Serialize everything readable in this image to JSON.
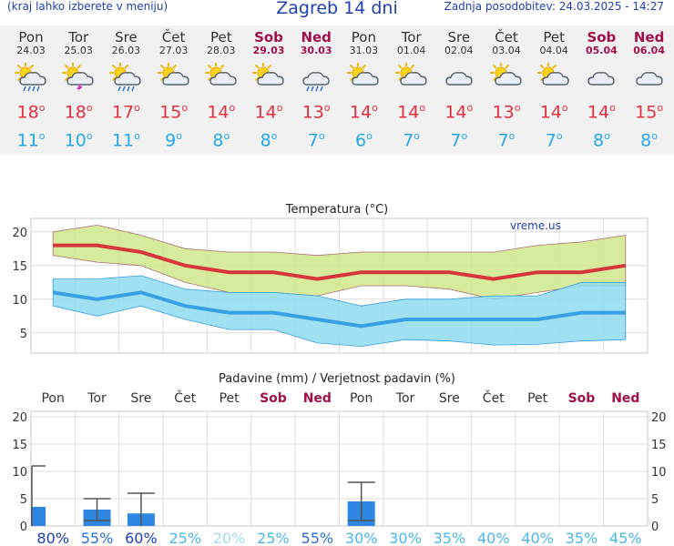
{
  "header": {
    "hint": "(kraj lahko izberete v meniju)",
    "title": "Zagreb 14 dni",
    "updated": "Zadnja posodobitev: 24.03.2025 - 14:27"
  },
  "days": [
    {
      "name": "Pon",
      "date": "24.03",
      "weekend": false,
      "icon": "sun-cloud-rain-icon",
      "tmax": "18",
      "tmin": "11"
    },
    {
      "name": "Tor",
      "date": "25.03",
      "weekend": false,
      "icon": "sun-cloud-thunder-icon",
      "tmax": "18",
      "tmin": "10"
    },
    {
      "name": "Sre",
      "date": "26.03",
      "weekend": false,
      "icon": "sun-cloud-rain-icon",
      "tmax": "17",
      "tmin": "11"
    },
    {
      "name": "Čet",
      "date": "27.03",
      "weekend": false,
      "icon": "sun-cloud-icon",
      "tmax": "15",
      "tmin": "9"
    },
    {
      "name": "Pet",
      "date": "28.03",
      "weekend": false,
      "icon": "sun-cloud-icon",
      "tmax": "14",
      "tmin": "8"
    },
    {
      "name": "Sob",
      "date": "29.03",
      "weekend": true,
      "icon": "sun-cloud-icon",
      "tmax": "14",
      "tmin": "8"
    },
    {
      "name": "Ned",
      "date": "30.03",
      "weekend": true,
      "icon": "cloud-rain-icon",
      "tmax": "13",
      "tmin": "7"
    },
    {
      "name": "Pon",
      "date": "31.03",
      "weekend": false,
      "icon": "sun-cloud-icon",
      "tmax": "14",
      "tmin": "6"
    },
    {
      "name": "Tor",
      "date": "01.04",
      "weekend": false,
      "icon": "sun-cloud-icon",
      "tmax": "14",
      "tmin": "7"
    },
    {
      "name": "Sre",
      "date": "02.04",
      "weekend": false,
      "icon": "cloud-icon",
      "tmax": "14",
      "tmin": "7"
    },
    {
      "name": "Čet",
      "date": "03.04",
      "weekend": false,
      "icon": "sun-cloud-icon",
      "tmax": "13",
      "tmin": "7"
    },
    {
      "name": "Pet",
      "date": "04.04",
      "weekend": false,
      "icon": "sun-cloud-icon",
      "tmax": "14",
      "tmin": "7"
    },
    {
      "name": "Sob",
      "date": "05.04",
      "weekend": true,
      "icon": "cloud-icon",
      "tmax": "14",
      "tmin": "8"
    },
    {
      "name": "Ned",
      "date": "06.04",
      "weekend": true,
      "icon": "cloud-icon",
      "tmax": "15",
      "tmin": "8"
    }
  ],
  "chart_data": [
    {
      "type": "line",
      "title": "Temperatura (°C)",
      "watermark": "vreme.us",
      "ylim": [
        2,
        22
      ],
      "yticks": [
        5,
        10,
        15,
        20
      ],
      "grid": true,
      "categories": [
        "24.03",
        "25.03",
        "26.03",
        "27.03",
        "28.03",
        "29.03",
        "30.03",
        "31.03",
        "01.04",
        "02.04",
        "03.04",
        "04.04",
        "05.04",
        "06.04"
      ],
      "series": [
        {
          "role": "max",
          "color": "#d8363c",
          "values": [
            18,
            18,
            17,
            15,
            14,
            14,
            13,
            14,
            14,
            14,
            13,
            14,
            14,
            15
          ]
        },
        {
          "role": "min",
          "color": "#3aa0e6",
          "values": [
            11,
            10,
            11,
            9,
            8,
            8,
            7,
            6,
            7,
            7,
            7,
            7,
            8,
            8
          ]
        }
      ],
      "bands": [
        {
          "role": "max-range",
          "color": "#cfe88a",
          "upper": [
            20,
            21,
            19.5,
            17.5,
            17,
            17,
            16.5,
            17,
            17,
            17,
            17,
            18,
            18.5,
            19.5
          ],
          "lower": [
            16.5,
            15.5,
            15,
            12.5,
            11,
            11,
            10.5,
            12,
            12,
            11.5,
            10,
            11,
            12,
            12
          ]
        },
        {
          "role": "min-range",
          "color": "#8edcf0",
          "upper": [
            13,
            13,
            13.5,
            11.5,
            11,
            11,
            10.5,
            9,
            10,
            10,
            10.5,
            10.5,
            12.5,
            12.5
          ],
          "lower": [
            9,
            7.5,
            9,
            7,
            5.5,
            5.5,
            3.5,
            3,
            4,
            3.8,
            3.2,
            3.3,
            3.8,
            4
          ]
        }
      ]
    },
    {
      "type": "bar",
      "title": "Padavine (mm) / Verjetnost padavin (%)",
      "ylim": [
        0,
        21
      ],
      "yticks": [
        0,
        5,
        10,
        15,
        20
      ],
      "categories": [
        "Pon",
        "Tor",
        "Sre",
        "Čet",
        "Pet",
        "Sob",
        "Ned",
        "Pon",
        "Tor",
        "Sre",
        "Čet",
        "Pet",
        "Sob",
        "Ned"
      ],
      "weekend": [
        false,
        false,
        false,
        false,
        false,
        true,
        true,
        false,
        false,
        false,
        false,
        false,
        true,
        true
      ],
      "values": [
        3.5,
        3,
        2.3,
        0,
        0,
        0,
        0,
        4.5,
        0,
        0,
        0,
        0,
        0,
        0
      ],
      "error_low": [
        0,
        1,
        0,
        0,
        0,
        0,
        0,
        1,
        0,
        0,
        0,
        0,
        0,
        0
      ],
      "error_high": [
        11,
        5,
        6,
        0,
        0,
        0,
        0,
        8,
        0,
        0,
        0,
        0,
        0,
        0
      ],
      "probability": [
        "80%",
        "55%",
        "60%",
        "25%",
        "20%",
        "25%",
        "55%",
        "30%",
        "30%",
        "35%",
        "40%",
        "40%",
        "35%",
        "45%"
      ],
      "probability_colors": [
        "#1f3fb0",
        "#2a6fd0",
        "#1f3fb0",
        "#4ab8e8",
        "#a8dcf0",
        "#4ab8e8",
        "#2a6fd0",
        "#4ab8e8",
        "#4ab8e8",
        "#4ab8e8",
        "#4ab8e8",
        "#4ab8e8",
        "#4ab8e8",
        "#4ab8e8"
      ],
      "bar_color": "#2f86e0"
    }
  ]
}
